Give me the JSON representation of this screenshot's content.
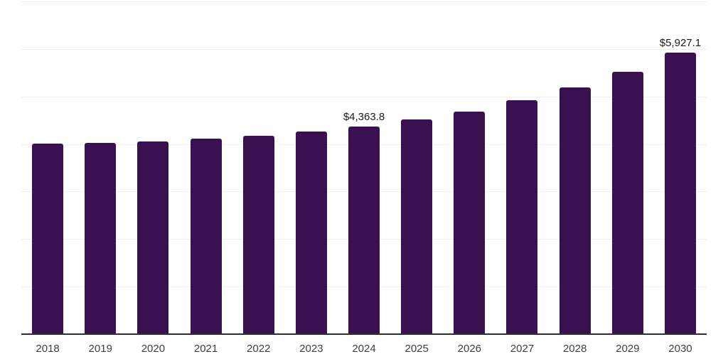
{
  "chart_data": {
    "type": "bar",
    "title": "",
    "xlabel": "",
    "ylabel": "",
    "ylim": [
      0,
      7000
    ],
    "grid_step": 1000,
    "grid_on": true,
    "legend": "none",
    "categories": [
      "2018",
      "2019",
      "2020",
      "2021",
      "2022",
      "2023",
      "2024",
      "2025",
      "2026",
      "2027",
      "2028",
      "2029",
      "2030"
    ],
    "values": [
      4015,
      4025,
      4055,
      4115,
      4175,
      4265,
      4363.8,
      4515,
      4680,
      4920,
      5190,
      5525,
      5927.1
    ],
    "data_labels": [
      null,
      null,
      null,
      null,
      null,
      null,
      "$4,363.8",
      null,
      null,
      null,
      null,
      null,
      "$5,927.1"
    ]
  },
  "colors": {
    "bar": "#3A1150",
    "gridline": "#f0f0f0",
    "axis": "#2e2e2e",
    "data_label_text": "#1a1a1a",
    "tick_text": "#404040",
    "background": "#ffffff"
  }
}
